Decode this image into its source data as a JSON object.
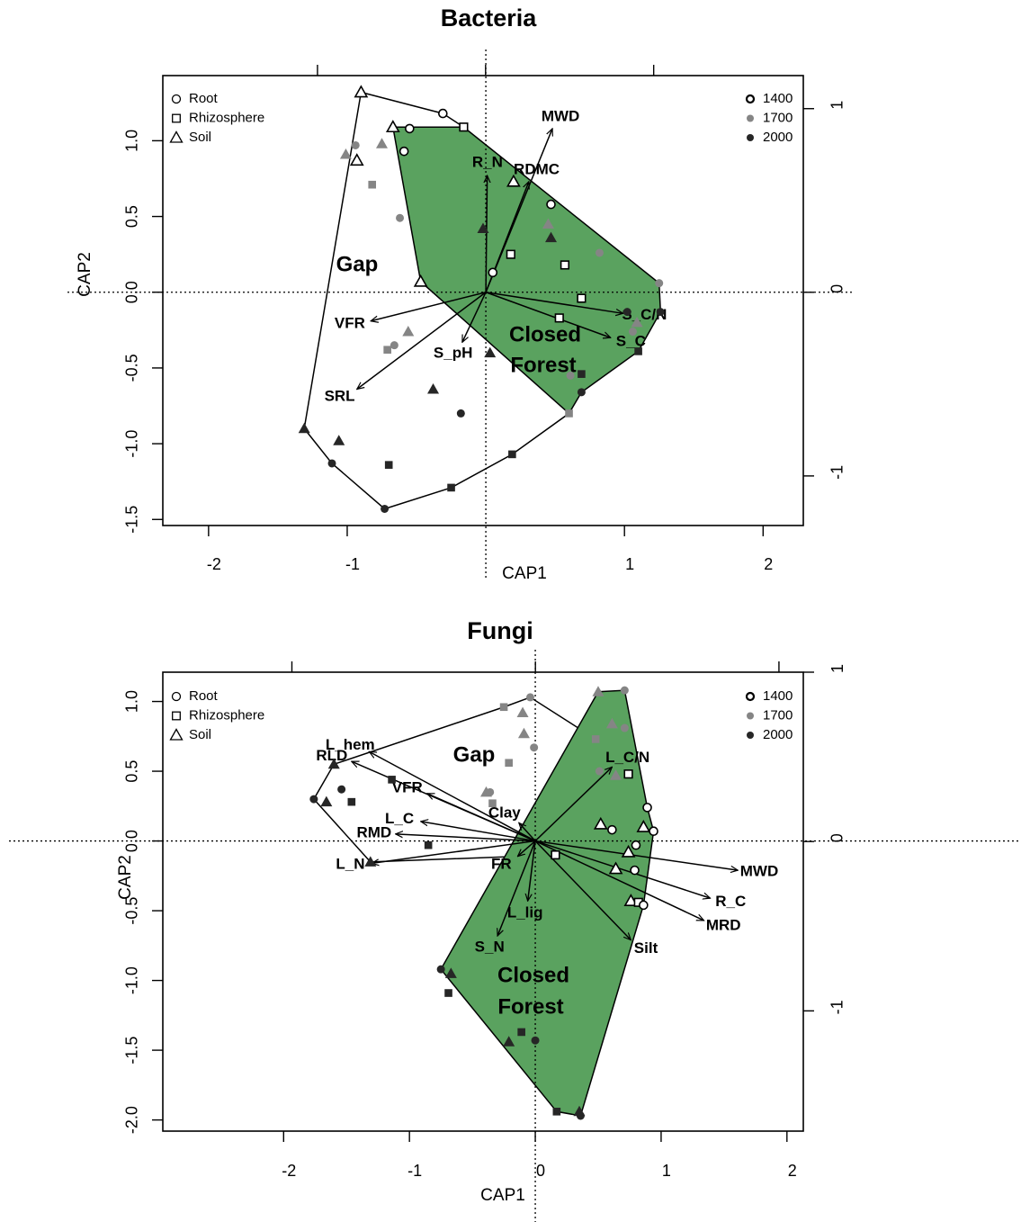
{
  "chart_data": [
    {
      "type": "biplot",
      "title": "Bacteria",
      "x_label": "CAP1",
      "y_label": "CAP2",
      "xlim": [
        -2.33,
        2.29
      ],
      "ylim": [
        -1.54,
        1.43
      ],
      "xticks": [
        -2,
        -1,
        1,
        2
      ],
      "yticks": [
        -1.5,
        {
          "value": -1,
          "label": "-1.0"
        },
        -0.5,
        {
          "value": 0,
          "label": "0.0"
        },
        0.5,
        {
          "value": 1,
          "label": "1.0"
        }
      ],
      "x2lim": [
        -1.92,
        1.89
      ],
      "x2ticks": [
        -1,
        0,
        1
      ],
      "y2lim": [
        -1.27,
        1.18
      ],
      "y2ticks": [
        -1,
        0,
        1
      ],
      "shape_legend": [
        {
          "name": "Root",
          "shape": "circle"
        },
        {
          "name": "Rhizosphere",
          "shape": "square"
        },
        {
          "name": "Soil",
          "shape": "triangle"
        }
      ],
      "color_legend": [
        {
          "name": "1400",
          "color": "#ffffff"
        },
        {
          "name": "1700",
          "color": "#858585"
        },
        {
          "name": "2000",
          "color": "#262626"
        }
      ],
      "hull_colors": [
        "#ffffff",
        "#5aa25f"
      ],
      "hulls": [
        {
          "label_lines": [
            "Gap"
          ],
          "points": [
            0,
            1,
            2,
            29,
            44,
            45,
            46,
            42,
            40
          ]
        },
        {
          "label_lines": [
            "Closed",
            "Forest"
          ],
          "points": [
            3,
            2,
            22,
            33,
            34,
            36,
            29,
            12
          ]
        }
      ],
      "arrows": [
        {
          "label": "MWD",
          "x": 0.48,
          "y": 1.08
        },
        {
          "label": "R_N",
          "x": 0.01,
          "y": 0.77
        },
        {
          "label": "RDMC",
          "x": 0.31,
          "y": 0.73
        },
        {
          "label": "S_C/N",
          "x": 0.99,
          "y": -0.14
        },
        {
          "label": "S_C",
          "x": 0.9,
          "y": -0.3
        },
        {
          "label": "S_pH",
          "x": -0.17,
          "y": -0.33
        },
        {
          "label": "VFR",
          "x": -0.83,
          "y": -0.19
        },
        {
          "label": "SRL",
          "x": -0.93,
          "y": -0.64
        }
      ],
      "points": {
        "x": [
          -0.9,
          -0.31,
          -0.16,
          -0.67,
          -0.55,
          -0.59,
          -0.93,
          0.2,
          0.47,
          0.18,
          0.57,
          0.05,
          -0.47,
          0.69,
          0.53,
          -0.94,
          -0.75,
          -1.01,
          -0.82,
          -0.62,
          0.45,
          0.82,
          1.25,
          -0.56,
          -0.66,
          -0.71,
          1.09,
          1.06,
          0.61,
          0.6,
          -0.02,
          0.47,
          1.02,
          1.26,
          1.1,
          0.69,
          0.69,
          0.03,
          -0.38,
          -0.18,
          -1.31,
          -1.06,
          -1.11,
          -0.7,
          0.19,
          -0.25,
          -0.73
        ],
        "y": [
          1.32,
          1.18,
          1.09,
          1.09,
          1.08,
          0.93,
          0.87,
          0.73,
          0.58,
          0.25,
          0.18,
          0.13,
          0.07,
          -0.04,
          -0.17,
          0.97,
          0.98,
          0.91,
          0.71,
          0.49,
          0.45,
          0.26,
          0.06,
          -0.26,
          -0.35,
          -0.38,
          -0.2,
          -0.26,
          -0.55,
          -0.8,
          0.42,
          0.36,
          -0.13,
          -0.13,
          -0.39,
          -0.54,
          -0.66,
          -0.4,
          -0.64,
          -0.8,
          -0.9,
          -0.98,
          -1.13,
          -1.14,
          -1.07,
          -1.29,
          -1.43
        ],
        "group": [
          2,
          0,
          1,
          2,
          0,
          0,
          2,
          2,
          0,
          1,
          1,
          0,
          2,
          1,
          1,
          0,
          2,
          2,
          1,
          0,
          2,
          0,
          0,
          2,
          0,
          1,
          2,
          0,
          0,
          1,
          2,
          2,
          0,
          0,
          1,
          1,
          0,
          2,
          2,
          0,
          2,
          2,
          0,
          1,
          1,
          1,
          0
        ],
        "age": [
          0,
          0,
          0,
          0,
          0,
          0,
          0,
          0,
          0,
          0,
          0,
          0,
          0,
          0,
          0,
          1,
          1,
          1,
          1,
          1,
          1,
          1,
          1,
          1,
          1,
          1,
          1,
          1,
          1,
          1,
          2,
          2,
          2,
          2,
          2,
          2,
          2,
          2,
          2,
          2,
          2,
          2,
          2,
          2,
          2,
          2,
          2
        ]
      }
    },
    {
      "type": "biplot",
      "title": "Fungi",
      "x_label": "CAP1",
      "y_label": "CAP2",
      "xlim": [
        -2.96,
        2.13
      ],
      "ylim": [
        -2.08,
        1.21
      ],
      "xticks": [
        -2,
        -1,
        0,
        1,
        2
      ],
      "yticks": [
        {
          "value": -2,
          "label": "-2.0"
        },
        -1.5,
        {
          "value": -1,
          "label": "-1.0"
        },
        -0.5,
        {
          "value": 0,
          "label": "0.0"
        },
        0.5,
        {
          "value": 1,
          "label": "1.0"
        }
      ],
      "x2lim": [
        -1.53,
        1.1
      ],
      "x2ticks": [
        -1,
        0,
        1
      ],
      "y2lim": [
        -1.71,
        1.0
      ],
      "y2ticks": [
        -1,
        0,
        1
      ],
      "shape_legend": [
        {
          "name": "Root",
          "shape": "circle"
        },
        {
          "name": "Rhizosphere",
          "shape": "square"
        },
        {
          "name": "Soil",
          "shape": "triangle"
        }
      ],
      "color_legend": [
        {
          "name": "1400",
          "color": "#ffffff"
        },
        {
          "name": "1700",
          "color": "#858585"
        },
        {
          "name": "2000",
          "color": "#262626"
        }
      ],
      "hull_colors": [
        "#ffffff",
        "#5aa25f"
      ],
      "hulls": [
        {
          "label_lines": [
            "Gap"
          ],
          "points": [
            31,
            1,
            0,
            13,
            24,
            37,
            34
          ]
        },
        {
          "label_lines": [
            "Closed",
            "Forest"
          ],
          "points": [
            9,
            10,
            17,
            21,
            29,
            46,
            44,
            38
          ]
        }
      ],
      "arrows": [
        {
          "label": "MWD",
          "x": 1.61,
          "y": -0.21
        },
        {
          "label": "R_C",
          "x": 1.39,
          "y": -0.41
        },
        {
          "label": "MRD",
          "x": 1.34,
          "y": -0.57
        },
        {
          "label": "Silt",
          "x": 0.76,
          "y": -0.71
        },
        {
          "label": "S_N",
          "x": -0.3,
          "y": -0.68
        },
        {
          "label": "L_lig",
          "x": -0.06,
          "y": -0.43
        },
        {
          "label": "FR",
          "x": -0.14,
          "y": -0.11
        },
        {
          "label": "Clay",
          "x": -0.13,
          "y": 0.13
        },
        {
          "label": "L_C/N",
          "x": 0.61,
          "y": 0.53
        },
        {
          "label": "L_N",
          "x": -1.3,
          "y": -0.16
        },
        {
          "label": "RMD",
          "x": -1.11,
          "y": 0.05
        },
        {
          "label": "L_C",
          "x": -0.91,
          "y": 0.14
        },
        {
          "label": "VFR",
          "x": -0.86,
          "y": 0.34
        },
        {
          "label": "RLD",
          "x": -1.46,
          "y": 0.57
        },
        {
          "label": "L_hem",
          "x": -1.32,
          "y": 0.64
        }
      ],
      "points": {
        "x": [
          -0.04,
          -0.25,
          -0.1,
          -0.09,
          -0.01,
          -0.21,
          -0.39,
          -0.36,
          -0.34,
          0.5,
          0.71,
          0.61,
          0.71,
          0.48,
          0.51,
          0.64,
          0.74,
          0.89,
          0.52,
          0.61,
          0.86,
          0.94,
          0.8,
          0.74,
          0.16,
          0.64,
          0.79,
          0.76,
          0.82,
          0.86,
          -1.14,
          -1.6,
          -1.54,
          -1.46,
          -1.76,
          -1.66,
          -0.85,
          -1.31,
          -0.75,
          -0.67,
          -0.69,
          -0.11,
          0.0,
          -0.21,
          0.17,
          0.35,
          0.36
        ],
        "y": [
          1.03,
          0.96,
          0.92,
          0.77,
          0.67,
          0.56,
          0.35,
          0.35,
          0.27,
          1.07,
          1.08,
          0.84,
          0.81,
          0.73,
          0.5,
          0.47,
          0.48,
          0.24,
          0.12,
          0.08,
          0.1,
          0.07,
          -0.03,
          -0.08,
          -0.1,
          -0.2,
          -0.21,
          -0.43,
          -0.44,
          -0.46,
          0.44,
          0.55,
          0.37,
          0.28,
          0.3,
          0.28,
          -0.03,
          -0.15,
          -0.92,
          -0.95,
          -1.09,
          -1.37,
          -1.43,
          -1.44,
          -1.94,
          -1.94,
          -1.97
        ],
        "group": [
          0,
          1,
          2,
          2,
          0,
          1,
          2,
          0,
          1,
          2,
          0,
          2,
          0,
          1,
          0,
          2,
          1,
          0,
          2,
          0,
          2,
          0,
          0,
          2,
          1,
          2,
          0,
          2,
          1,
          0,
          1,
          2,
          0,
          1,
          0,
          2,
          1,
          2,
          0,
          2,
          1,
          1,
          0,
          2,
          1,
          2,
          0
        ],
        "age": [
          1,
          1,
          1,
          1,
          1,
          1,
          1,
          1,
          1,
          1,
          1,
          1,
          1,
          1,
          1,
          1,
          0,
          0,
          0,
          0,
          0,
          0,
          0,
          0,
          0,
          0,
          0,
          0,
          0,
          0,
          2,
          2,
          2,
          2,
          2,
          2,
          2,
          2,
          2,
          2,
          2,
          2,
          2,
          2,
          2,
          2,
          2
        ]
      }
    }
  ]
}
